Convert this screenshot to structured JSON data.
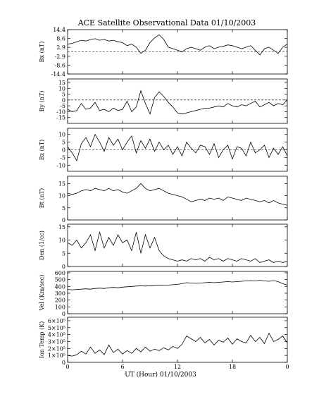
{
  "figure": {
    "title": "ACE Satellite Observational Data   01/10/2003",
    "xlabel": "UT (Hour)   01/10/2003"
  },
  "chart_data": [
    {
      "type": "line",
      "ylabel": "Bx (nT)",
      "ylim": [
        -14.4,
        14.4
      ],
      "yticks": [
        "14.4",
        "8.6",
        "2.9",
        "-2.9",
        "-8.6",
        "-14.4"
      ],
      "ytick_values": [
        14.4,
        8.6,
        2.9,
        -2.9,
        -8.6,
        -14.4
      ],
      "zero_line": true,
      "x": [
        0,
        0.5,
        1,
        1.5,
        2,
        2.5,
        3,
        3.5,
        4,
        4.5,
        5,
        5.5,
        6,
        6.5,
        7,
        7.5,
        8,
        8.5,
        9,
        9.5,
        10,
        10.5,
        11,
        11.5,
        12,
        12.5,
        13,
        13.5,
        14,
        14.5,
        15,
        15.5,
        16,
        16.5,
        17,
        17.5,
        18,
        18.5,
        19,
        19.5,
        20,
        20.5,
        21,
        21.5,
        22,
        22.5,
        23,
        23.5,
        24
      ],
      "y": [
        5,
        5.5,
        6.5,
        7.5,
        7,
        8,
        8.5,
        7.5,
        8,
        7,
        7.5,
        6.5,
        6,
        4,
        5,
        3,
        -1,
        1,
        6,
        9,
        11,
        8,
        3,
        2,
        1,
        0,
        2,
        3,
        2,
        1,
        3,
        4,
        2,
        3,
        3.5,
        4.5,
        4,
        3,
        2,
        3,
        4,
        1,
        -2,
        2,
        3,
        1,
        -1,
        3,
        5
      ]
    },
    {
      "type": "line",
      "ylabel": "By (nT)",
      "ylim": [
        -20,
        18
      ],
      "yticks": [
        "15",
        "10",
        "5",
        "0",
        "-5",
        "-10",
        "-15"
      ],
      "ytick_values": [
        15,
        10,
        5,
        0,
        -5,
        -10,
        -15
      ],
      "zero_line": true,
      "x": [
        0,
        0.5,
        1,
        1.5,
        2,
        2.5,
        3,
        3.5,
        4,
        4.5,
        5,
        5.5,
        6,
        6.5,
        7,
        7.5,
        8,
        8.5,
        9,
        9.5,
        10,
        10.5,
        11,
        11.5,
        12,
        12.5,
        13,
        13.5,
        14,
        14.5,
        15,
        15.5,
        16,
        16.5,
        17,
        17.5,
        18,
        18.5,
        19,
        19.5,
        20,
        20.5,
        21,
        21.5,
        22,
        22.5,
        23,
        23.5,
        24
      ],
      "y": [
        -8,
        -10,
        -9,
        -3,
        -8,
        -7,
        -2,
        -9,
        -8,
        -10,
        -7,
        -9,
        -8,
        -1,
        -10,
        -6,
        8,
        -3,
        -12,
        2,
        7,
        3,
        -2,
        -6,
        -11,
        -12,
        -11,
        -10,
        -9,
        -8,
        -7,
        -7,
        -6,
        -5,
        -6,
        -3,
        -5,
        -6,
        -4,
        -5,
        -3,
        -1,
        -6,
        -4,
        -2,
        -5,
        -3,
        -4,
        0
      ]
    },
    {
      "type": "line",
      "ylabel": "Bz (nT)",
      "ylim": [
        -14,
        14
      ],
      "yticks": [
        "10",
        "5",
        "0",
        "-5",
        "-10"
      ],
      "ytick_values": [
        10,
        5,
        0,
        -5,
        -10
      ],
      "zero_line": true,
      "x": [
        0,
        0.5,
        1,
        1.5,
        2,
        2.5,
        3,
        3.5,
        4,
        4.5,
        5,
        5.5,
        6,
        6.5,
        7,
        7.5,
        8,
        8.5,
        9,
        9.5,
        10,
        10.5,
        11,
        11.5,
        12,
        12.5,
        13,
        13.5,
        14,
        14.5,
        15,
        15.5,
        16,
        16.5,
        17,
        17.5,
        18,
        18.5,
        19,
        19.5,
        20,
        20.5,
        21,
        21.5,
        22,
        22.5,
        23,
        23.5,
        24
      ],
      "y": [
        2,
        -2,
        -7,
        4,
        8,
        2,
        10,
        5,
        -1,
        8,
        3,
        7,
        0,
        5,
        9,
        -2,
        6,
        1,
        7,
        -1,
        5,
        0,
        3,
        -3,
        2,
        -4,
        5,
        1,
        -2,
        3,
        2,
        -3,
        4,
        -5,
        0,
        3,
        -6,
        2,
        1,
        -4,
        5,
        -2,
        0,
        3,
        -5,
        1,
        -3,
        2,
        -4
      ]
    },
    {
      "type": "line",
      "ylabel": "Bt (nT)",
      "ylim": [
        0,
        18
      ],
      "yticks": [
        "15",
        "10",
        "5",
        "0"
      ],
      "ytick_values": [
        15,
        10,
        5,
        0
      ],
      "zero_line": false,
      "x": [
        0,
        0.5,
        1,
        1.5,
        2,
        2.5,
        3,
        3.5,
        4,
        4.5,
        5,
        5.5,
        6,
        6.5,
        7,
        7.5,
        8,
        8.5,
        9,
        9.5,
        10,
        10.5,
        11,
        11.5,
        12,
        12.5,
        13,
        13.5,
        14,
        14.5,
        15,
        15.5,
        16,
        16.5,
        17,
        17.5,
        18,
        18.5,
        19,
        19.5,
        20,
        20.5,
        21,
        21.5,
        22,
        22.5,
        23,
        23.5,
        24
      ],
      "y": [
        11,
        10.5,
        11,
        12,
        12.5,
        12,
        13,
        12.5,
        12,
        13,
        12,
        12.5,
        11.5,
        11,
        12,
        13,
        15,
        13,
        12,
        12.5,
        13,
        12,
        11,
        10.5,
        10,
        9.5,
        8.5,
        7.5,
        8,
        8.5,
        8,
        9,
        8.5,
        9,
        8,
        9.5,
        9,
        8.5,
        8,
        9,
        8.5,
        8,
        7.5,
        8,
        7,
        8,
        7,
        6.5,
        6
      ]
    },
    {
      "type": "line",
      "ylabel": "Den (1/cc)",
      "ylim": [
        0,
        16
      ],
      "yticks": [
        "15",
        "10",
        "5",
        "0"
      ],
      "ytick_values": [
        15,
        10,
        5,
        0
      ],
      "zero_line": false,
      "x": [
        0,
        0.5,
        1,
        1.5,
        2,
        2.5,
        3,
        3.5,
        4,
        4.5,
        5,
        5.5,
        6,
        6.5,
        7,
        7.5,
        8,
        8.5,
        9,
        9.5,
        10,
        10.5,
        11,
        11.5,
        12,
        12.5,
        13,
        13.5,
        14,
        14.5,
        15,
        15.5,
        16,
        16.5,
        17,
        17.5,
        18,
        18.5,
        19,
        19.5,
        20,
        20.5,
        21,
        21.5,
        22,
        22.5,
        23,
        23.5,
        24
      ],
      "y": [
        9,
        8,
        10,
        7,
        9,
        12,
        6,
        13,
        7,
        11,
        8,
        12,
        9,
        10,
        6,
        13,
        5,
        12,
        7,
        11,
        6,
        4,
        3,
        2.5,
        2,
        2.5,
        2,
        3,
        2.5,
        3,
        2,
        3.5,
        2.5,
        3,
        2,
        3,
        2.5,
        2,
        3,
        2.5,
        2,
        3,
        1.5,
        2,
        2.5,
        1.5,
        2,
        1.5,
        2
      ]
    },
    {
      "type": "line",
      "ylabel": "Vel (Km/sec)",
      "ylim": [
        0,
        620
      ],
      "yticks": [
        "600",
        "500",
        "400",
        "300",
        "200",
        "100",
        "0"
      ],
      "ytick_values": [
        600,
        500,
        400,
        300,
        200,
        100,
        0
      ],
      "zero_line": false,
      "x": [
        0,
        0.5,
        1,
        1.5,
        2,
        2.5,
        3,
        3.5,
        4,
        4.5,
        5,
        5.5,
        6,
        6.5,
        7,
        7.5,
        8,
        8.5,
        9,
        9.5,
        10,
        10.5,
        11,
        11.5,
        12,
        12.5,
        13,
        13.5,
        14,
        14.5,
        15,
        15.5,
        16,
        16.5,
        17,
        17.5,
        18,
        18.5,
        19,
        19.5,
        20,
        20.5,
        21,
        21.5,
        22,
        22.5,
        23,
        23.5,
        24
      ],
      "y": [
        355,
        350,
        355,
        360,
        365,
        360,
        370,
        375,
        370,
        380,
        385,
        380,
        390,
        395,
        400,
        405,
        410,
        405,
        410,
        415,
        420,
        418,
        420,
        425,
        430,
        440,
        455,
        450,
        445,
        450,
        455,
        460,
        455,
        460,
        465,
        470,
        465,
        470,
        475,
        480,
        485,
        480,
        490,
        480,
        475,
        485,
        470,
        440,
        420
      ]
    },
    {
      "type": "line",
      "ylabel": "Ion Temp (K)",
      "ylim": [
        0,
        650000
      ],
      "yticks": [
        "6×10⁵",
        "5×10⁵",
        "4×10⁵",
        "3×10⁵",
        "2×10⁵",
        "1×10⁵",
        "0"
      ],
      "ytick_values": [
        600000,
        500000,
        400000,
        300000,
        200000,
        100000,
        0
      ],
      "zero_line": false,
      "x": [
        0,
        0.5,
        1,
        1.5,
        2,
        2.5,
        3,
        3.5,
        4,
        4.5,
        5,
        5.5,
        6,
        6.5,
        7,
        7.5,
        8,
        8.5,
        9,
        9.5,
        10,
        10.5,
        11,
        11.5,
        12,
        12.5,
        13,
        13.5,
        14,
        14.5,
        15,
        15.5,
        16,
        16.5,
        17,
        17.5,
        18,
        18.5,
        19,
        19.5,
        20,
        20.5,
        21,
        21.5,
        22,
        22.5,
        23,
        23.5,
        24
      ],
      "y": [
        100000,
        90000,
        110000,
        160000,
        120000,
        220000,
        130000,
        180000,
        110000,
        250000,
        140000,
        190000,
        120000,
        170000,
        130000,
        200000,
        150000,
        220000,
        160000,
        190000,
        170000,
        210000,
        180000,
        230000,
        200000,
        260000,
        380000,
        340000,
        300000,
        360000,
        280000,
        330000,
        250000,
        320000,
        290000,
        350000,
        260000,
        340000,
        300000,
        280000,
        390000,
        300000,
        360000,
        270000,
        420000,
        300000,
        330000,
        380000,
        280000
      ]
    }
  ],
  "x_axis": {
    "xlim": [
      0,
      24
    ],
    "ticks": [
      "0",
      "6",
      "12",
      "18",
      "0"
    ],
    "tick_values": [
      0,
      6,
      12,
      18,
      24
    ]
  }
}
